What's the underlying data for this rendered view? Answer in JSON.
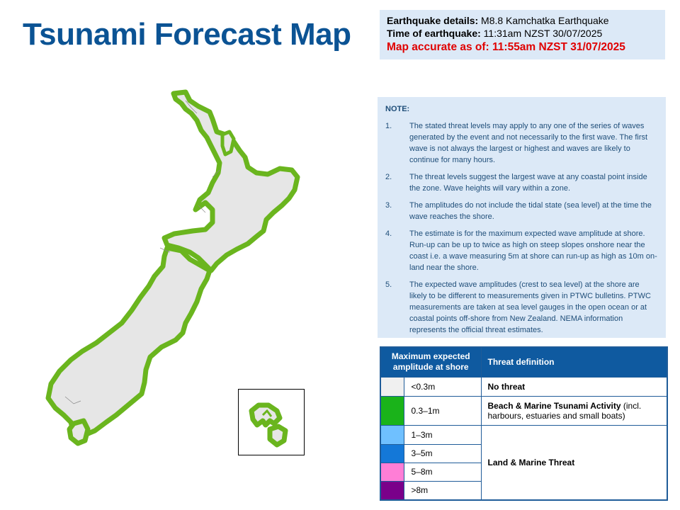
{
  "title": "Tsunami Forecast Map",
  "details": {
    "eq_label": "Earthquake details:",
    "eq_value": "M8.8 Kamchatka Earthquake",
    "time_label": "Time of earthquake:",
    "time_value": "11:31am NZST 30/07/2025",
    "accurate": "Map accurate as of: 11:55am NZST 31/07/2025"
  },
  "note": {
    "title": "NOTE:",
    "items": [
      {
        "num": "1.",
        "text": "The stated threat levels may apply to any one of the series of waves generated by the event and not necessarily to the first wave. The first wave is not always the largest or highest and waves are likely to continue for many hours."
      },
      {
        "num": "2.",
        "text": "The threat levels suggest the largest wave at any coastal point inside the zone. Wave heights will vary within a zone."
      },
      {
        "num": "3.",
        "text": "The amplitudes do not include the tidal state (sea level) at the time the wave reaches the shore."
      },
      {
        "num": "4.",
        "text": "The estimate is for the maximum expected wave amplitude at shore. Run-up can be up to twice as high on steep slopes onshore near the coast i.e. a wave measuring 5m at shore can run-up as high as 10m on-land near the shore."
      },
      {
        "num": "5.",
        "text": "The expected wave amplitudes (crest to sea level) at the shore are likely to be different to measurements given in PTWC bulletins. PTWC measurements are taken at sea level gauges in the open ocean or at coastal points off-shore from New Zealand. NEMA information represents the official threat estimates."
      }
    ]
  },
  "legend": {
    "col1": "Maximum expected amplitude at shore",
    "col2": "Threat definition",
    "rows": [
      {
        "amp": "<0.3m",
        "color": "#f0f0f0"
      },
      {
        "amp": "0.3–1m",
        "color": "#1ab31a"
      },
      {
        "amp": "1–3m",
        "color": "#6fc0ff"
      },
      {
        "amp": "3–5m",
        "color": "#1478d8"
      },
      {
        "amp": "5–8m",
        "color": "#ff7ed6"
      },
      {
        "amp": ">8m",
        "color": "#7a008a"
      }
    ],
    "def_none": "No threat",
    "def_beach_bold": "Beach & Marine Tsunami Activity",
    "def_beach_rest": " (incl. harbours, estuaries and small boats)",
    "def_land": "Land & Marine Threat"
  },
  "map_colors": {
    "land": "#e6e6e6",
    "coast": "#6ab51e"
  }
}
